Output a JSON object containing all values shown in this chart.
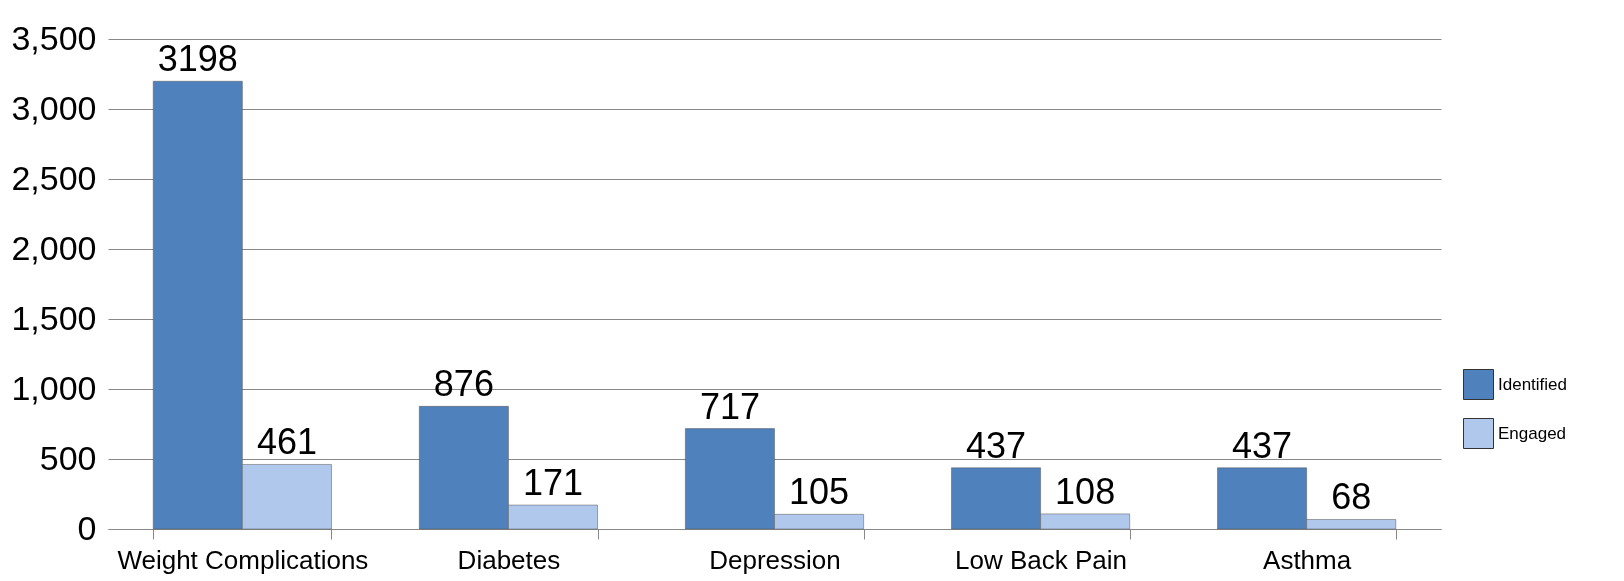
{
  "chart_data": {
    "type": "bar",
    "categories": [
      "Weight Complications",
      "Diabetes",
      "Depression",
      "Low Back Pain",
      "Asthma"
    ],
    "series": [
      {
        "name": "Identified",
        "color": "#4f81bd",
        "values": [
          3198,
          876,
          717,
          437,
          437
        ]
      },
      {
        "name": "Engaged",
        "color": "#b0c8ec",
        "values": [
          461,
          171,
          105,
          108,
          68
        ]
      }
    ],
    "ylim": [
      0,
      3500
    ],
    "yticks": [
      0,
      500,
      {
        "value": 1000,
        "label": "1,000"
      },
      {
        "value": 1500,
        "label": "1,500"
      },
      {
        "value": 2000,
        "label": "2,000"
      },
      {
        "value": 2500,
        "label": "2,500"
      },
      {
        "value": 3000,
        "label": "3,000"
      },
      {
        "value": 3500,
        "label": "3,500"
      }
    ],
    "grid": "y",
    "legend": "right",
    "data_labels": true
  }
}
